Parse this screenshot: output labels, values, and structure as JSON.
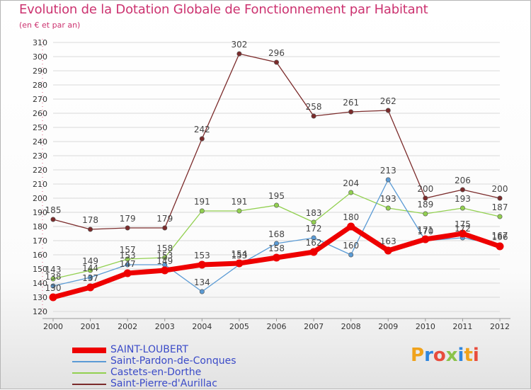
{
  "header": {
    "title": "Evolution de la Dotation Globale de Fonctionnement par Habitant",
    "subtitle": "(en € et par an)"
  },
  "legend": [
    {
      "label": "SAINT-LOUBERT"
    },
    {
      "label": "Saint-Pardon-de-Conques"
    },
    {
      "label": "Castets-en-Dorthe"
    },
    {
      "label": "Saint-Pierre-d'Aurillac"
    }
  ],
  "logo": {
    "text": "Proxiti"
  },
  "colors": {
    "title": "#cc3370",
    "legend_text": "#3b4bc8",
    "grid": "#d9d9d9",
    "axis": "#999999"
  },
  "chart_data": {
    "type": "line",
    "title": "Evolution de la Dotation Globale de Fonctionnement par Habitant",
    "subtitle": "(en € et par an)",
    "xlabel": "",
    "ylabel": "",
    "ylim": [
      120,
      310
    ],
    "ytick_step": 10,
    "grid": true,
    "legend_position": "bottom-left",
    "categories": [
      "2000",
      "2001",
      "2002",
      "2003",
      "2004",
      "2005",
      "2006",
      "2007",
      "2008",
      "2009",
      "2010",
      "2011",
      "2012"
    ],
    "series": [
      {
        "name": "SAINT-LOUBERT",
        "color": "#ee0000",
        "thick": true,
        "values": [
          130,
          137,
          147,
          149,
          153,
          154,
          158,
          162,
          180,
          163,
          171,
          175,
          166
        ],
        "labels": [
          "130",
          "137",
          "147",
          "149",
          "153",
          "154",
          "158",
          "162",
          "180",
          "163",
          "171",
          "175",
          "166"
        ]
      },
      {
        "name": "Saint-Pardon-de-Conques",
        "color": "#5b9bd5",
        "thick": false,
        "values": [
          138,
          144,
          153,
          153,
          134,
          153,
          168,
          172,
          160,
          213,
          170,
          172,
          167
        ],
        "labels": [
          "138",
          "144",
          "153",
          "153",
          "134",
          "153",
          "168",
          "172",
          "160",
          "213",
          "170",
          "172",
          "167"
        ]
      },
      {
        "name": "Castets-en-Dorthe",
        "color": "#92d050",
        "thick": false,
        "values": [
          143,
          149,
          157,
          158,
          191,
          191,
          195,
          183,
          204,
          193,
          189,
          193,
          187
        ],
        "labels": [
          "143",
          "149",
          "157",
          "158",
          "191",
          "191",
          "195",
          "183",
          "204",
          "193",
          "189",
          "193",
          "187"
        ]
      },
      {
        "name": "Saint-Pierre-d'Aurillac",
        "color": "#7b2b2b",
        "thick": false,
        "values": [
          185,
          178,
          179,
          179,
          242,
          302,
          296,
          258,
          261,
          262,
          200,
          206,
          200
        ],
        "labels": [
          "185",
          "178",
          "179",
          "179",
          "242",
          "302",
          "296",
          "258",
          "261",
          "262",
          "200",
          "206",
          "200"
        ]
      }
    ]
  }
}
